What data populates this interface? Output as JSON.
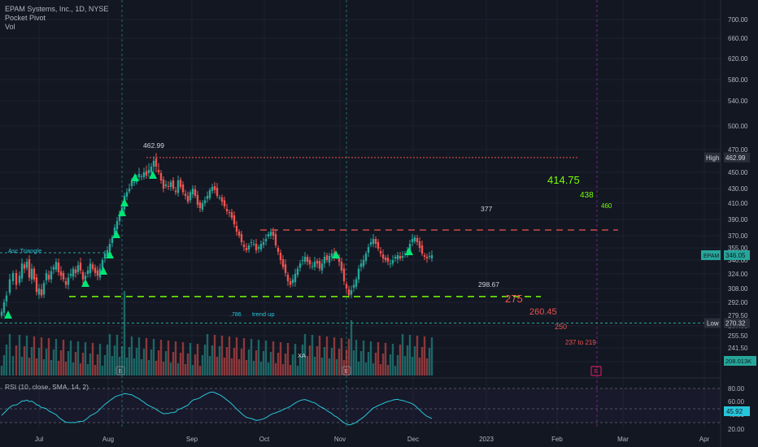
{
  "legend": {
    "symbol_line": "EPAM Systems, Inc., 1D, NYSE",
    "indicator1": "Pocket Pivot",
    "indicator2": "Vol"
  },
  "rsi_legend": "RSI (10, close, SMA, 14, 2)",
  "colors": {
    "background": "#131722",
    "up": "#26a69a",
    "down": "#ef5350",
    "green_marker": "#00e676",
    "rsi_line": "#26c6da"
  },
  "price_axis": {
    "ticks": [
      "700.00",
      "660.00",
      "620.00",
      "580.00",
      "540.00",
      "500.00",
      "470.00",
      "450.00",
      "430.00",
      "410.00",
      "390.00",
      "370.00",
      "355.00",
      "340.00",
      "324.00",
      "308.00",
      "292.00",
      "279.50",
      "267.00",
      "255.50",
      "241.50",
      "228.50"
    ],
    "high_label": "High",
    "high_value": "462.99",
    "current_symbol": "EPAM",
    "current_value": "346.05",
    "low_label": "Low",
    "low_value": "270.32",
    "vol_value": "208.013K"
  },
  "rsi_axis": {
    "ticks": [
      "80.00",
      "60.00",
      "40.00",
      "20.00"
    ],
    "current_value": "45.92"
  },
  "time_axis": [
    "Jul",
    "Aug",
    "Sep",
    "Oct",
    "Nov",
    "Dec",
    "2023",
    "Feb",
    "Mar",
    "Apr"
  ],
  "annotations": {
    "asc_triangle": "Asc Triangle",
    "peak": "462.99",
    "level_377": "377",
    "level_298": "298.67",
    "target_414": "414.75",
    "target_438": "438",
    "target_460": "460",
    "target_275": "275",
    "target_260": "260.45",
    "target_250": "250",
    "target_237": "237 to 219",
    "fib_label": ".786",
    "trend_up": "trend up",
    "xa_label": "XA",
    "earnings_e": "E",
    "future_e": "E"
  },
  "chart_data": {
    "type": "candlestick",
    "symbol": "EPAM Systems, Inc.",
    "interval": "1D",
    "exchange": "NYSE",
    "y_range": [
      228.5,
      720
    ],
    "high": 462.99,
    "low": 270.32,
    "current_price": 346.05,
    "levels": [
      462.99,
      377,
      298.67,
      270.32
    ],
    "targets": [
      414.75,
      438,
      460,
      275,
      260.45,
      250
    ],
    "target_range": [
      237,
      219
    ],
    "close_path": [
      [
        0,
        283
      ],
      [
        3,
        292
      ],
      [
        6,
        300
      ],
      [
        10,
        318
      ],
      [
        14,
        325
      ],
      [
        18,
        312
      ],
      [
        22,
        322
      ],
      [
        25,
        336
      ],
      [
        28,
        330
      ],
      [
        31,
        338
      ],
      [
        34,
        320
      ],
      [
        37,
        330
      ],
      [
        40,
        318
      ],
      [
        43,
        304
      ],
      [
        46,
        308
      ],
      [
        49,
        300
      ],
      [
        52,
        314
      ],
      [
        55,
        325
      ],
      [
        58,
        318
      ],
      [
        61,
        327
      ],
      [
        64,
        332
      ],
      [
        67,
        338
      ],
      [
        70,
        326
      ],
      [
        73,
        322
      ],
      [
        76,
        318
      ],
      [
        79,
        312
      ],
      [
        82,
        320
      ],
      [
        85,
        324
      ],
      [
        88,
        330
      ],
      [
        91,
        325
      ],
      [
        94,
        334
      ],
      [
        97,
        328
      ],
      [
        100,
        318
      ],
      [
        103,
        322
      ],
      [
        106,
        328
      ],
      [
        109,
        336
      ],
      [
        112,
        330
      ],
      [
        115,
        325
      ],
      [
        118,
        322
      ],
      [
        121,
        330
      ],
      [
        124,
        340
      ],
      [
        127,
        348
      ],
      [
        130,
        352
      ],
      [
        133,
        360
      ],
      [
        136,
        368
      ],
      [
        139,
        380
      ],
      [
        142,
        388
      ],
      [
        145,
        395
      ],
      [
        148,
        405
      ],
      [
        151,
        420
      ],
      [
        154,
        425
      ],
      [
        157,
        430
      ],
      [
        160,
        440
      ],
      [
        163,
        438
      ],
      [
        166,
        442
      ],
      [
        169,
        448
      ],
      [
        172,
        445
      ],
      [
        175,
        450
      ],
      [
        178,
        446
      ],
      [
        181,
        452
      ],
      [
        184,
        455
      ],
      [
        187,
        460
      ],
      [
        190,
        455
      ],
      [
        193,
        450
      ],
      [
        196,
        440
      ],
      [
        199,
        430
      ],
      [
        202,
        435
      ],
      [
        205,
        432
      ],
      [
        208,
        438
      ],
      [
        211,
        430
      ],
      [
        214,
        425
      ],
      [
        217,
        440
      ],
      [
        220,
        432
      ],
      [
        223,
        425
      ],
      [
        226,
        420
      ],
      [
        229,
        412
      ],
      [
        232,
        425
      ],
      [
        235,
        430
      ],
      [
        238,
        420
      ],
      [
        241,
        408
      ],
      [
        244,
        404
      ],
      [
        247,
        410
      ],
      [
        250,
        414
      ],
      [
        253,
        420
      ],
      [
        256,
        428
      ],
      [
        259,
        432
      ],
      [
        262,
        428
      ],
      [
        265,
        420
      ],
      [
        268,
        418
      ],
      [
        271,
        412
      ],
      [
        274,
        406
      ],
      [
        277,
        400
      ],
      [
        280,
        398
      ],
      [
        283,
        392
      ],
      [
        286,
        384
      ],
      [
        289,
        375
      ],
      [
        292,
        370
      ],
      [
        295,
        362
      ],
      [
        298,
        356
      ],
      [
        301,
        352
      ],
      [
        304,
        358
      ],
      [
        307,
        362
      ],
      [
        310,
        360
      ],
      [
        313,
        352
      ],
      [
        316,
        356
      ],
      [
        319,
        360
      ],
      [
        322,
        362
      ],
      [
        325,
        366
      ],
      [
        328,
        372
      ],
      [
        331,
        375
      ],
      [
        334,
        370
      ],
      [
        337,
        358
      ],
      [
        340,
        350
      ],
      [
        343,
        340
      ],
      [
        346,
        332
      ],
      [
        349,
        325
      ],
      [
        352,
        316
      ],
      [
        355,
        312
      ],
      [
        358,
        318
      ],
      [
        361,
        324
      ],
      [
        364,
        330
      ],
      [
        367,
        336
      ],
      [
        370,
        340
      ],
      [
        373,
        344
      ],
      [
        376,
        338
      ],
      [
        379,
        335
      ],
      [
        382,
        333
      ],
      [
        385,
        338
      ],
      [
        388,
        336
      ],
      [
        391,
        330
      ],
      [
        394,
        336
      ],
      [
        397,
        344
      ],
      [
        400,
        340
      ],
      [
        403,
        345
      ],
      [
        406,
        348
      ],
      [
        409,
        342
      ],
      [
        412,
        345
      ],
      [
        415,
        338
      ],
      [
        418,
        328
      ],
      [
        421,
        316
      ],
      [
        424,
        308
      ],
      [
        427,
        300
      ],
      [
        430,
        306
      ],
      [
        433,
        312
      ],
      [
        436,
        318
      ],
      [
        439,
        330
      ],
      [
        442,
        336
      ],
      [
        445,
        340
      ],
      [
        448,
        348
      ],
      [
        451,
        356
      ],
      [
        454,
        362
      ],
      [
        457,
        366
      ],
      [
        460,
        360
      ],
      [
        463,
        354
      ],
      [
        466,
        348
      ],
      [
        469,
        342
      ],
      [
        472,
        340
      ],
      [
        475,
        338
      ],
      [
        478,
        336
      ],
      [
        481,
        340
      ],
      [
        484,
        344
      ],
      [
        487,
        346
      ],
      [
        490,
        342
      ],
      [
        493,
        345
      ],
      [
        496,
        348
      ],
      [
        499,
        352
      ],
      [
        502,
        360
      ],
      [
        505,
        366
      ],
      [
        508,
        368
      ],
      [
        511,
        362
      ],
      [
        514,
        355
      ],
      [
        517,
        348
      ],
      [
        520,
        344
      ],
      [
        523,
        342
      ],
      [
        526,
        345
      ],
      [
        529,
        346.05
      ]
    ],
    "rsi": {
      "length": 10,
      "source": "close",
      "ma": "SMA",
      "ma_length": 14,
      "value": 45.92,
      "levels": [
        70,
        50,
        30
      ]
    }
  }
}
